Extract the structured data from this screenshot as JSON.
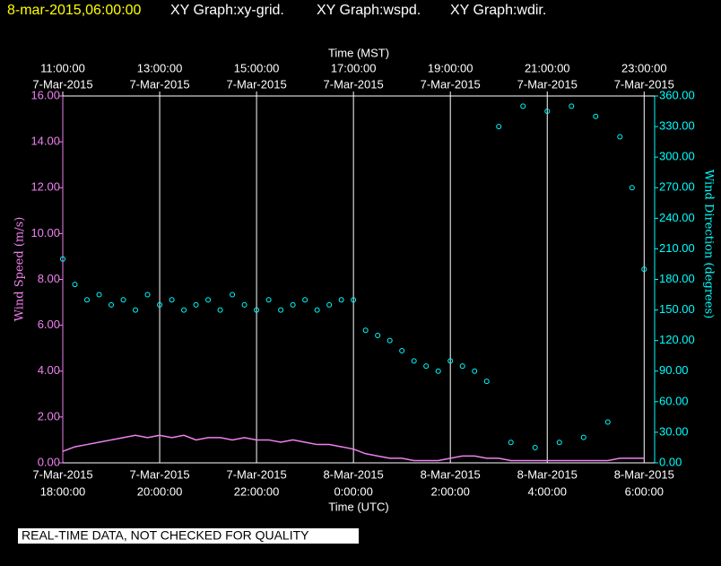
{
  "header": {
    "timestamp": "8-mar-2015,06:00:00",
    "graphs": [
      "XY Graph:xy-grid.",
      "XY Graph:wspd.",
      "XY Graph:wdir."
    ]
  },
  "footer": {
    "note": "REAL-TIME DATA, NOT CHECKED FOR QUALITY"
  },
  "chart_data": {
    "type": "scatter",
    "xlabel": "Time (UTC)",
    "x2label": "Time (MST)",
    "ylabel": "Wind Speed (m/s)",
    "y2label": "Wind Direction (degrees)",
    "xlim": [
      "2015-03-07T18:00:00",
      "2015-03-08T06:13:00"
    ],
    "xticks": [
      {
        "value": "2015-03-07T18:00:00",
        "date": "7-Mar-2015",
        "time": "18:00:00"
      },
      {
        "value": "2015-03-07T20:00:00",
        "date": "7-Mar-2015",
        "time": "20:00:00"
      },
      {
        "value": "2015-03-07T22:00:00",
        "date": "7-Mar-2015",
        "time": "22:00:00"
      },
      {
        "value": "2015-03-08T00:00:00",
        "date": "8-Mar-2015",
        "time": "0:00:00"
      },
      {
        "value": "2015-03-08T02:00:00",
        "date": "8-Mar-2015",
        "time": "2:00:00"
      },
      {
        "value": "2015-03-08T04:00:00",
        "date": "8-Mar-2015",
        "time": "4:00:00"
      },
      {
        "value": "2015-03-08T06:00:00",
        "date": "8-Mar-2015",
        "time": "6:00:00"
      }
    ],
    "x2ticks": [
      {
        "value": "2015-03-07T18:00:00",
        "time": "11:00:00",
        "date": "7-Mar-2015"
      },
      {
        "value": "2015-03-07T20:00:00",
        "time": "13:00:00",
        "date": "7-Mar-2015"
      },
      {
        "value": "2015-03-07T22:00:00",
        "time": "15:00:00",
        "date": "7-Mar-2015"
      },
      {
        "value": "2015-03-08T00:00:00",
        "time": "17:00:00",
        "date": "7-Mar-2015"
      },
      {
        "value": "2015-03-08T02:00:00",
        "time": "19:00:00",
        "date": "7-Mar-2015"
      },
      {
        "value": "2015-03-08T04:00:00",
        "time": "21:00:00",
        "date": "7-Mar-2015"
      },
      {
        "value": "2015-03-08T06:00:00",
        "time": "23:00:00",
        "date": "7-Mar-2015"
      }
    ],
    "ylim": [
      0,
      16
    ],
    "yticks": [
      {
        "value": 0,
        "label": "0.00"
      },
      {
        "value": 2,
        "label": "2.00"
      },
      {
        "value": 4,
        "label": "4.00"
      },
      {
        "value": 6,
        "label": "6.00"
      },
      {
        "value": 8,
        "label": "8.00"
      },
      {
        "value": 10,
        "label": "10.00"
      },
      {
        "value": 12,
        "label": "12.00"
      },
      {
        "value": 14,
        "label": "14.00"
      },
      {
        "value": 16,
        "label": "16.00"
      }
    ],
    "y2lim": [
      0,
      360
    ],
    "y2ticks": [
      {
        "value": 0,
        "label": "0.00"
      },
      {
        "value": 30,
        "label": "30.00"
      },
      {
        "value": 60,
        "label": "60.00"
      },
      {
        "value": 90,
        "label": "90.00"
      },
      {
        "value": 120,
        "label": "120.00"
      },
      {
        "value": 150,
        "label": "150.00"
      },
      {
        "value": 180,
        "label": "180.00"
      },
      {
        "value": 210,
        "label": "210.00"
      },
      {
        "value": 240,
        "label": "240.00"
      },
      {
        "value": 270,
        "label": "270.00"
      },
      {
        "value": 300,
        "label": "300.00"
      },
      {
        "value": 330,
        "label": "330.00"
      },
      {
        "value": 360,
        "label": "360.00"
      }
    ],
    "grid": true,
    "x": [
      "2015-03-07T18:00:00",
      "2015-03-07T18:15:00",
      "2015-03-07T18:30:00",
      "2015-03-07T18:45:00",
      "2015-03-07T19:00:00",
      "2015-03-07T19:15:00",
      "2015-03-07T19:30:00",
      "2015-03-07T19:45:00",
      "2015-03-07T20:00:00",
      "2015-03-07T20:15:00",
      "2015-03-07T20:30:00",
      "2015-03-07T20:45:00",
      "2015-03-07T21:00:00",
      "2015-03-07T21:15:00",
      "2015-03-07T21:30:00",
      "2015-03-07T21:45:00",
      "2015-03-07T22:00:00",
      "2015-03-07T22:15:00",
      "2015-03-07T22:30:00",
      "2015-03-07T22:45:00",
      "2015-03-07T23:00:00",
      "2015-03-07T23:15:00",
      "2015-03-07T23:30:00",
      "2015-03-07T23:45:00",
      "2015-03-08T00:00:00",
      "2015-03-08T00:15:00",
      "2015-03-08T00:30:00",
      "2015-03-08T00:45:00",
      "2015-03-08T01:00:00",
      "2015-03-08T01:15:00",
      "2015-03-08T01:30:00",
      "2015-03-08T01:45:00",
      "2015-03-08T02:00:00",
      "2015-03-08T02:15:00",
      "2015-03-08T02:30:00",
      "2015-03-08T02:45:00",
      "2015-03-08T03:00:00",
      "2015-03-08T03:15:00",
      "2015-03-08T03:30:00",
      "2015-03-08T03:45:00",
      "2015-03-08T04:00:00",
      "2015-03-08T04:15:00",
      "2015-03-08T04:30:00",
      "2015-03-08T04:45:00",
      "2015-03-08T05:00:00",
      "2015-03-08T05:15:00",
      "2015-03-08T05:30:00",
      "2015-03-08T05:45:00",
      "2015-03-08T06:00:00"
    ],
    "series": [
      {
        "name": "wspd",
        "color": "#ee82ee",
        "axis": "y",
        "values": [
          0.5,
          0.7,
          0.8,
          0.9,
          1.0,
          1.1,
          1.2,
          1.1,
          1.2,
          1.1,
          1.2,
          1.0,
          1.1,
          1.1,
          1.0,
          1.1,
          1.0,
          1.0,
          0.9,
          1.0,
          0.9,
          0.8,
          0.8,
          0.7,
          0.6,
          0.4,
          0.3,
          0.2,
          0.2,
          0.1,
          0.1,
          0.1,
          0.2,
          0.3,
          0.3,
          0.2,
          0.2,
          0.1,
          0.1,
          0.1,
          0.1,
          0.1,
          0.1,
          0.1,
          0.1,
          0.1,
          0.2,
          0.2,
          0.2
        ]
      },
      {
        "name": "wdir",
        "color": "#00ffff",
        "axis": "y2",
        "values": [
          200,
          175,
          160,
          165,
          155,
          160,
          150,
          165,
          155,
          160,
          150,
          155,
          160,
          150,
          165,
          155,
          150,
          160,
          150,
          155,
          160,
          150,
          155,
          160,
          160,
          130,
          125,
          120,
          110,
          100,
          95,
          90,
          100,
          95,
          90,
          80,
          330,
          20,
          350,
          15,
          345,
          20,
          350,
          25,
          340,
          40,
          320,
          270,
          190
        ]
      }
    ]
  }
}
